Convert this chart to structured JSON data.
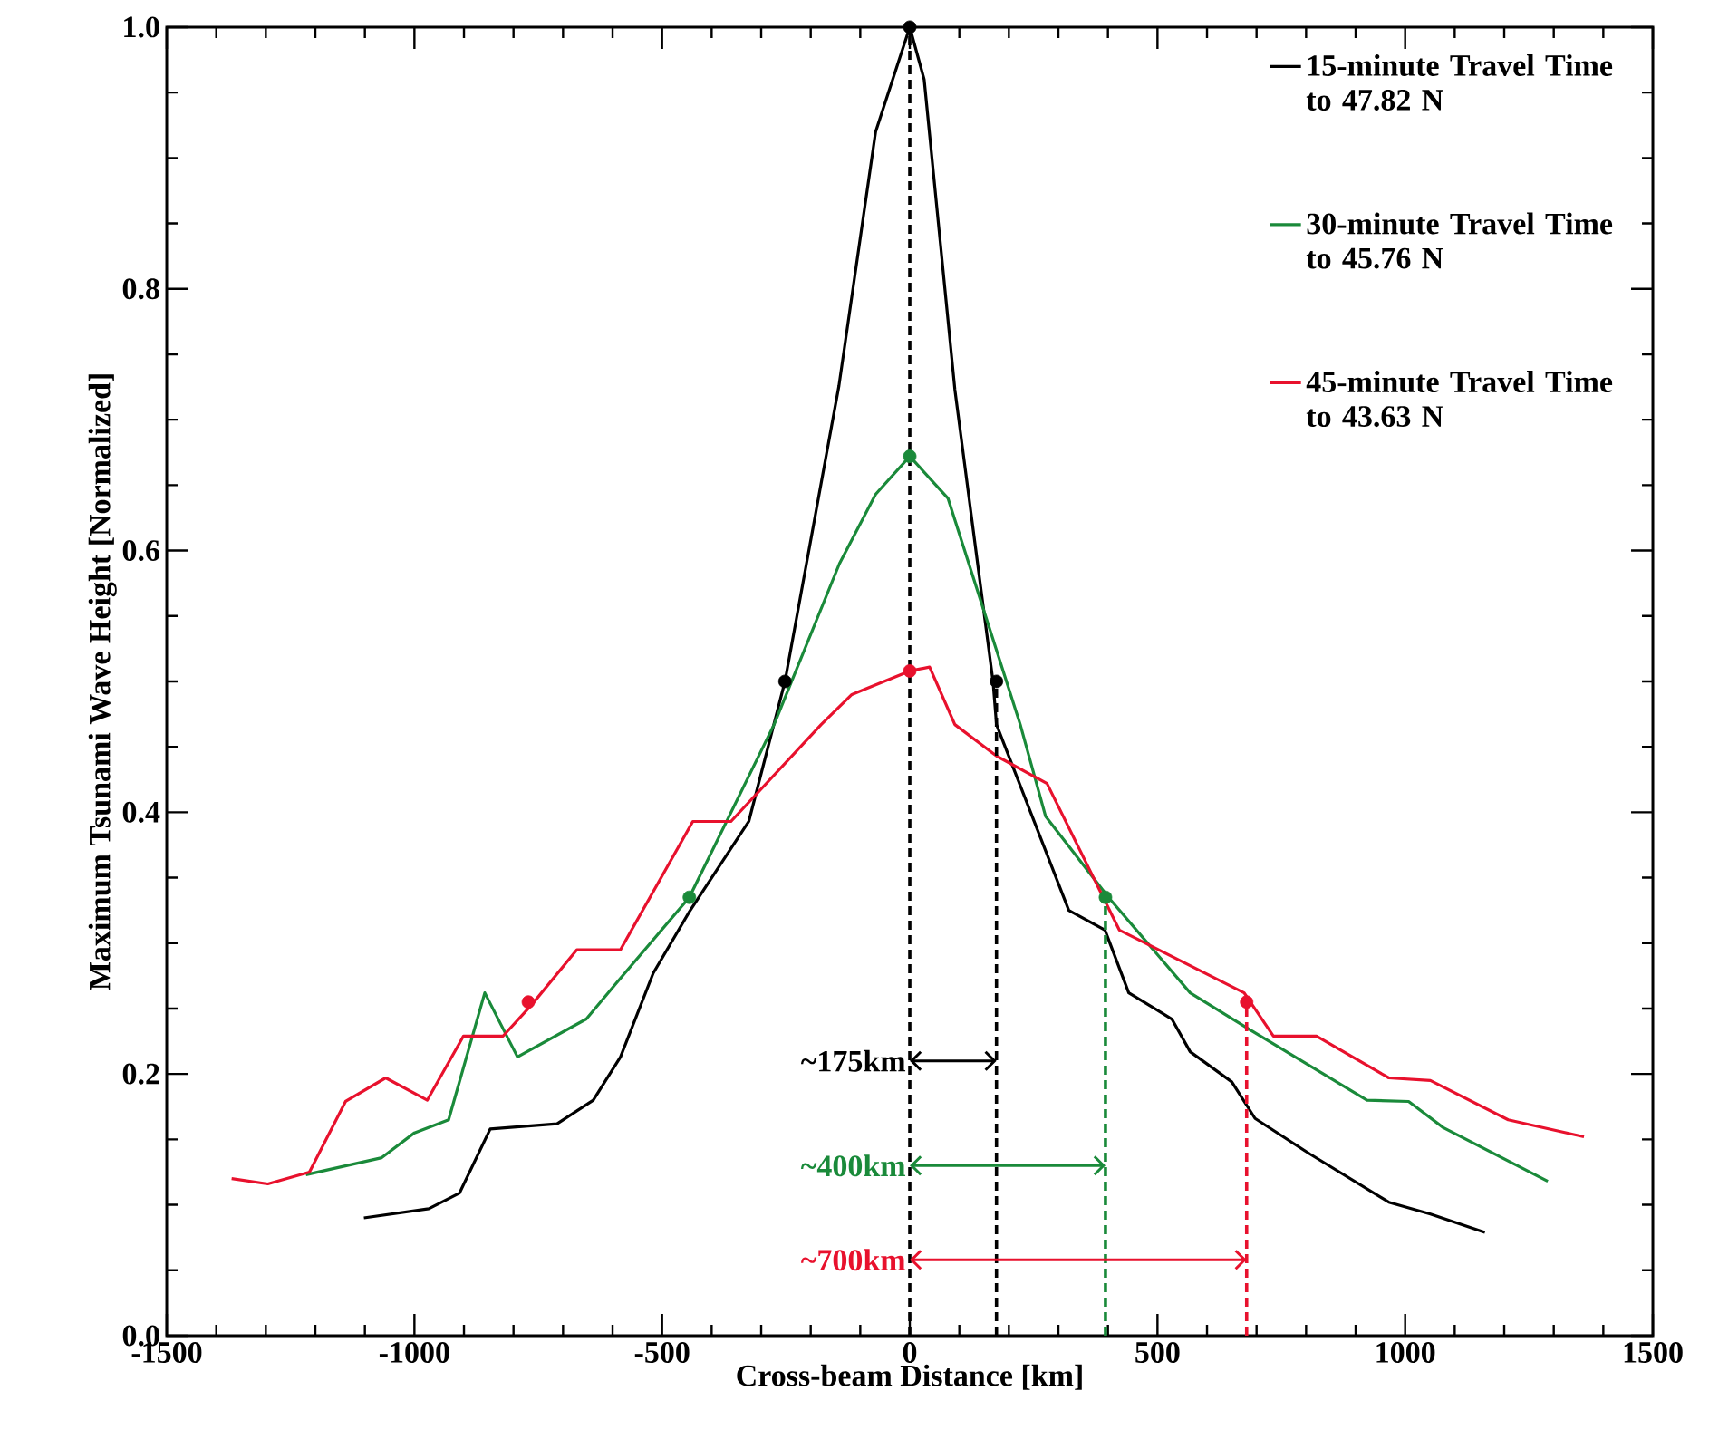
{
  "chart_data": {
    "type": "line",
    "xlabel": "Cross-beam Distance [km]",
    "ylabel": "Maximum Tsunami Wave Height [Normalized]",
    "xlim": [
      -1500,
      1500
    ],
    "xticks": [
      -1500,
      -1000,
      -500,
      0,
      500,
      1000,
      1500
    ],
    "ylim": [
      0,
      1
    ],
    "yticks": [
      {
        "value": 0,
        "label": "0.0"
      },
      {
        "value": 0.2,
        "label": "0.2"
      },
      {
        "value": 0.4,
        "label": "0.4"
      },
      {
        "value": 0.6,
        "label": "0.6"
      },
      {
        "value": 0.8,
        "label": "0.8"
      },
      {
        "value": 1,
        "label": "1.0"
      }
    ],
    "legend": "top right",
    "series": [
      {
        "name": "15-minute Travel Time to 47.82 N",
        "color": "#000000",
        "x": [
          -1102,
          -971,
          -909,
          -847,
          -712,
          -639,
          -584,
          -518,
          -445,
          -325,
          -252,
          -143,
          -69,
          0,
          29,
          91,
          168,
          175,
          321,
          394,
          442,
          529,
          566,
          650,
          697,
          807,
          967,
          1051,
          1161
        ],
        "values": [
          0.09,
          0.097,
          0.109,
          0.158,
          0.162,
          0.18,
          0.213,
          0.277,
          0.324,
          0.393,
          0.5,
          0.726,
          0.92,
          1.0,
          0.96,
          0.723,
          0.5,
          0.467,
          0.325,
          0.31,
          0.262,
          0.242,
          0.217,
          0.194,
          0.166,
          0.139,
          0.102,
          0.093,
          0.079
        ]
      },
      {
        "name": "30-minute Travel Time to 45.76 N",
        "color": "#1a8a3a",
        "x": [
          -1219,
          -1066,
          -1000,
          -931,
          -858,
          -792,
          -653,
          -591,
          -445,
          -274,
          -142,
          -69,
          0,
          77,
          223,
          274,
          401,
          566,
          686,
          923,
          1007,
          1077,
          1288
        ],
        "values": [
          0.123,
          0.136,
          0.155,
          0.165,
          0.262,
          0.213,
          0.242,
          0.27,
          0.335,
          0.467,
          0.59,
          0.643,
          0.672,
          0.64,
          0.467,
          0.397,
          0.335,
          0.262,
          0.234,
          0.18,
          0.179,
          0.159,
          0.118
        ]
      },
      {
        "name": "45-minute Travel Time to 43.63 N",
        "color": "#e8112d",
        "x": [
          -1369,
          -1296,
          -1212,
          -1139,
          -1058,
          -974,
          -901,
          -821,
          -763,
          -672,
          -584,
          -438,
          -361,
          -179,
          -117,
          0,
          40,
          91,
          175,
          277,
          423,
          675,
          734,
          821,
          967,
          1051,
          1208,
          1361
        ],
        "values": [
          0.12,
          0.116,
          0.125,
          0.179,
          0.197,
          0.18,
          0.229,
          0.229,
          0.253,
          0.295,
          0.295,
          0.393,
          0.393,
          0.467,
          0.49,
          0.508,
          0.511,
          0.467,
          0.443,
          0.422,
          0.31,
          0.262,
          0.229,
          0.229,
          0.197,
          0.195,
          0.165,
          0.152
        ]
      },
      {
        "type": "scatter",
        "marker": "circle",
        "color": "#000000",
        "x": [
          -252,
          0,
          175
        ],
        "values": [
          0.5,
          1.0,
          0.5
        ]
      },
      {
        "type": "scatter",
        "marker": "circle",
        "color": "#1a8a3a",
        "x": [
          -445,
          0,
          395
        ],
        "values": [
          0.335,
          0.672,
          0.335
        ]
      },
      {
        "type": "scatter",
        "marker": "circle",
        "color": "#e8112d",
        "x": [
          -770,
          0,
          680
        ],
        "values": [
          0.255,
          0.508,
          0.255
        ]
      }
    ],
    "ref_lines": [
      {
        "axis": "x",
        "value": 0,
        "color": "#000000",
        "line_style": "dashed"
      },
      {
        "axis": "x",
        "value": 175,
        "color": "#000000",
        "line_style": "dashed"
      },
      {
        "axis": "x",
        "value": 395,
        "color": "#1a8a3a",
        "line_style": "dashed"
      },
      {
        "axis": "x",
        "value": 680,
        "color": "#e8112d",
        "line_style": "dashed"
      }
    ],
    "annotations": [
      {
        "text": "~175km",
        "x": 175,
        "y": 0.21
      },
      {
        "text": "~400km",
        "x": 395,
        "y": 0.13
      },
      {
        "text": "~700km",
        "x": 680,
        "y": 0.058
      }
    ]
  }
}
